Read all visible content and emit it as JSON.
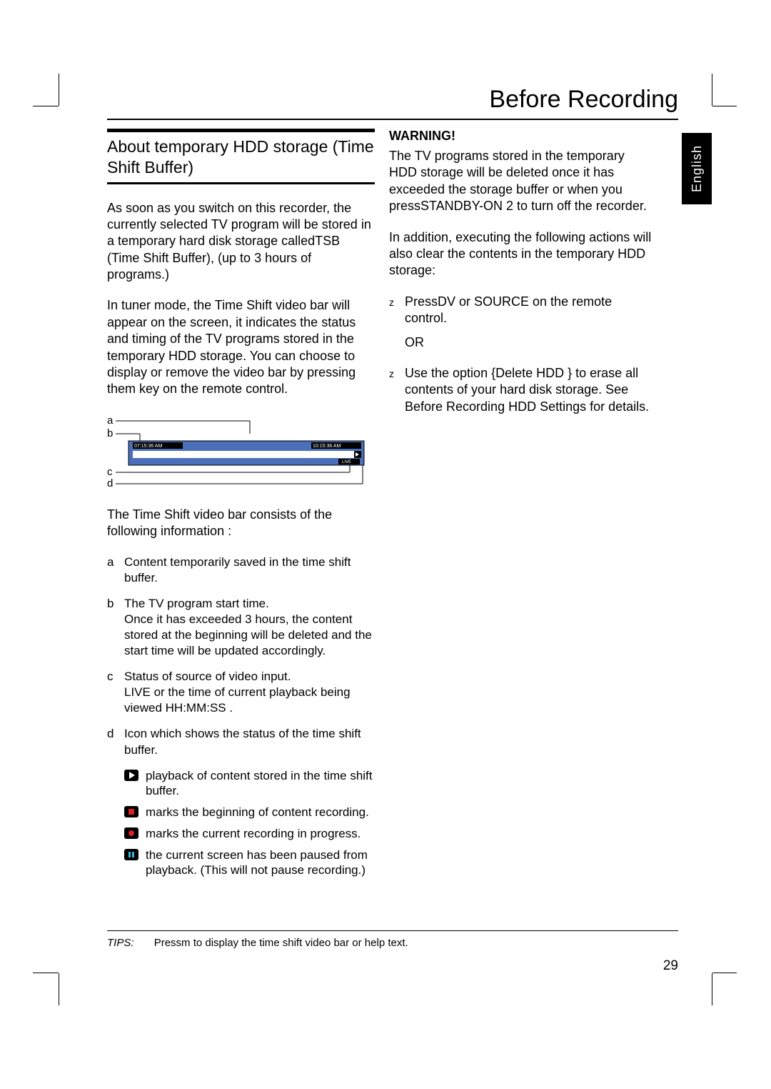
{
  "page_title": "Before Recording",
  "language_tab": "English",
  "page_number": "29",
  "left": {
    "heading": "About temporary HDD storage (Time Shift Buffer)",
    "para1": "As soon as you switch on this recorder, the currently selected TV program will be stored in a temporary hard disk storage calledTSB  (Time Shift Buffer), (up to 3 hours of programs.)",
    "para2": "In tuner mode, the Time Shift video bar will appear on the screen, it indicates the status and timing of the TV programs stored in the temporary HDD storage. You can choose to display or remove the video bar by pressing them  key on the remote control.",
    "diagram": {
      "time_left": "07:15:36 AM",
      "time_right": "10:15:36 AM",
      "live_label": "LIVE",
      "labels": [
        "a",
        "b",
        "c",
        "d"
      ],
      "colors": {
        "bar_fill": "#4b6fb8",
        "track_bg": "#1a1a1a",
        "inner_bar": "#ffffff",
        "time_bg": "#000000",
        "time_fg": "#ffffff",
        "stroke": "#000000"
      }
    },
    "followup": "The Time Shift video bar consists of the following information :",
    "items": [
      {
        "mk": "a",
        "txt": "Content temporarily saved in the time shift buffer."
      },
      {
        "mk": "b",
        "txt": "The TV program start time.\nOnce it has exceeded 3 hours, the content stored at the beginning will be deleted and the start time will be updated accordingly."
      },
      {
        "mk": "c",
        "txt": "Status of source of video input.\n LIVE  or the time of current playback being viewed  HH:MM:SS ."
      },
      {
        "mk": "d",
        "txt": "Icon which shows the status of the time shift buffer."
      }
    ],
    "icons": [
      {
        "kind": "play",
        "txt": "playback of content stored in the time shift buffer."
      },
      {
        "kind": "rec-start",
        "txt": "marks the beginning of content recording."
      },
      {
        "kind": "rec",
        "txt": "marks the current recording in progress."
      },
      {
        "kind": "pause",
        "txt": "the current screen has been paused from playback. (This will not pause recording.)"
      }
    ]
  },
  "right": {
    "warning": "WARNING!",
    "para1": "The TV programs stored in the temporary HDD storage will be deleted once it has exceeded the storage buffer or when you pressSTANDBY-ON  2 to turn off the recorder.",
    "para2": "In addition, executing the following actions will also clear the contents in the temporary HDD storage:",
    "bul1": "PressDV or SOURCE on the remote control.",
    "or": "OR",
    "bul2": "Use the option {Delete HDD  } to erase all contents of your hard disk storage. See  Before Recording   HDD Settings  for details."
  },
  "tips": {
    "label": "TIPS:",
    "text": "Pressm  to display the time shift video bar or help text."
  }
}
